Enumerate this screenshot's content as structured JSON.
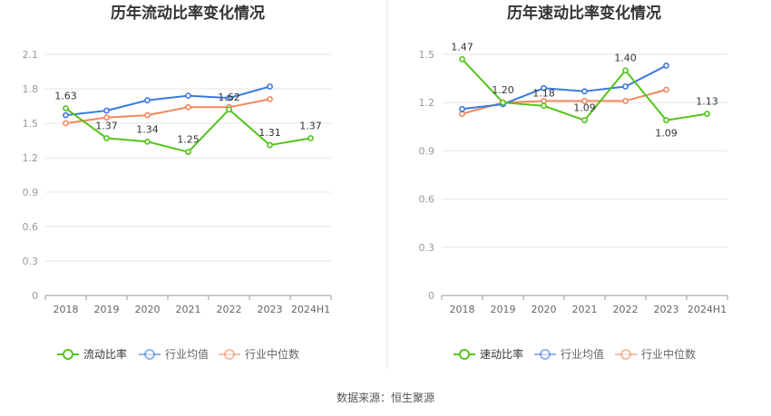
{
  "colors": {
    "ratio": "#52c41a",
    "industry_avg": "#3b78dd",
    "industry_median": "#f2875f",
    "grid": "#e6e6e6",
    "axis": "#999999",
    "text": "#333333",
    "divider": "#e8e8e8"
  },
  "legend": {
    "industry_avg": "行业均值",
    "industry_median": "行业中位数"
  },
  "source": "数据来源：恒生聚源",
  "chart_data": [
    {
      "type": "line",
      "title": "历年流动比率变化情况",
      "categories": [
        "2018",
        "2019",
        "2020",
        "2021",
        "2022",
        "2023",
        "2024H1"
      ],
      "y_ticks": [
        "0",
        "0.3",
        "0.6",
        "0.9",
        "1.2",
        "1.5",
        "1.8",
        "2.1"
      ],
      "ylim": [
        0,
        2.1
      ],
      "series": [
        {
          "key": "ratio",
          "name": "流动比率",
          "values": [
            1.63,
            1.37,
            1.34,
            1.25,
            1.62,
            1.31,
            1.37
          ],
          "labels": [
            "1.63",
            "1.37",
            "1.34",
            "1.25",
            "1.62",
            "1.31",
            "1.37"
          ]
        },
        {
          "key": "industry_avg",
          "name": "行业均值",
          "values": [
            1.57,
            1.61,
            1.7,
            1.74,
            1.72,
            1.82,
            null
          ]
        },
        {
          "key": "industry_median",
          "name": "行业中位数",
          "values": [
            1.5,
            1.55,
            1.57,
            1.64,
            1.64,
            1.71,
            null
          ]
        }
      ]
    },
    {
      "type": "line",
      "title": "历年速动比率变化情况",
      "categories": [
        "2018",
        "2019",
        "2020",
        "2021",
        "2022",
        "2023",
        "2024H1"
      ],
      "y_ticks": [
        "0",
        "0.3",
        "0.6",
        "0.9",
        "1.2",
        "1.5"
      ],
      "ylim": [
        0,
        1.5
      ],
      "series": [
        {
          "key": "ratio",
          "name": "速动比率",
          "values": [
            1.47,
            1.2,
            1.18,
            1.09,
            1.4,
            1.09,
            1.13
          ],
          "labels": [
            "1.47",
            "1.20",
            "1.18",
            "1.09",
            "1.40",
            "1.09",
            "1.13"
          ]
        },
        {
          "key": "industry_avg",
          "name": "行业均值",
          "values": [
            1.16,
            1.19,
            1.29,
            1.27,
            1.3,
            1.43,
            null
          ]
        },
        {
          "key": "industry_median",
          "name": "行业中位数",
          "values": [
            1.13,
            1.2,
            1.21,
            1.21,
            1.21,
            1.28,
            null
          ]
        }
      ]
    }
  ]
}
